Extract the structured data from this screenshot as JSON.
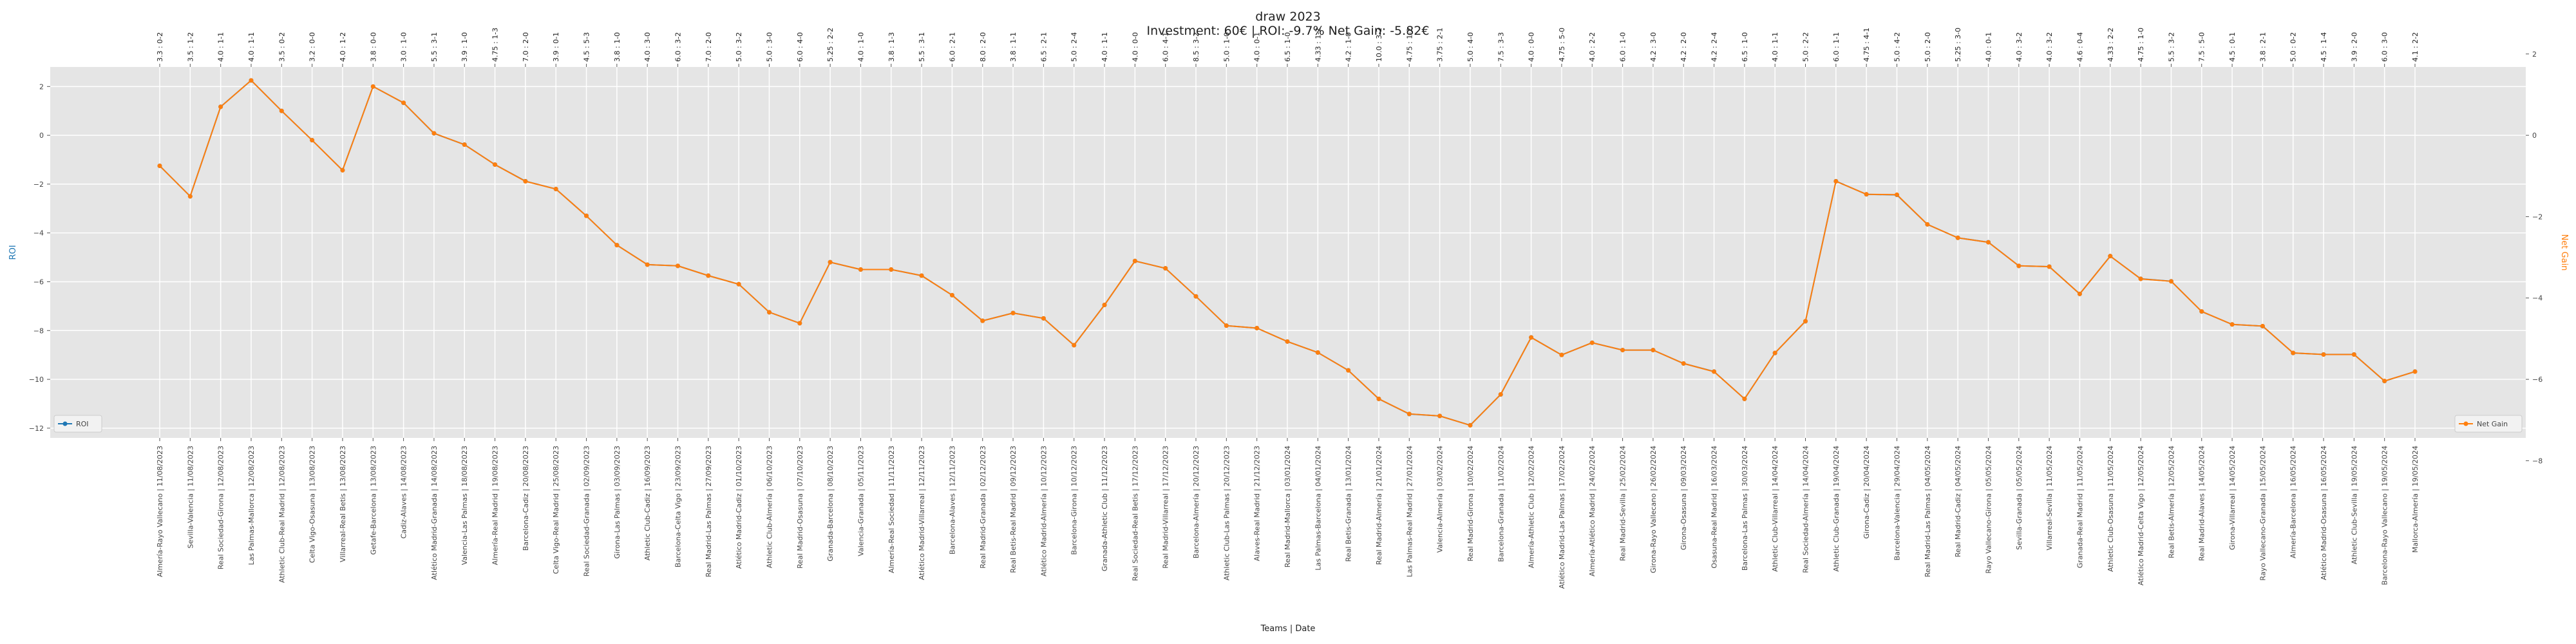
{
  "chart_data": {
    "type": "line",
    "title": "draw 2023",
    "subtitle": "Investment: 60€ | ROI: -9.7% Net Gain: -5.82€",
    "xlabel": "Teams | Date",
    "ylabel_left": "ROI",
    "ylabel_right": "Net Gain",
    "ylim_left": [
      -12.4,
      2.8
    ],
    "ylim_right": [
      -7.44,
      1.68
    ],
    "yticks_left": [
      2,
      0,
      -2,
      -4,
      -6,
      -8,
      -10,
      -12
    ],
    "yticks_right": [
      2,
      0,
      -2,
      -4,
      -6,
      -8
    ],
    "grid": true,
    "legend_left": "bottom-left",
    "legend_right": "bottom-right",
    "colors": {
      "roi": "#1f77b4",
      "net": "#ff7f0e",
      "plot_bg": "#e5e5e5",
      "grid": "#ffffff"
    },
    "categories": [
      "Almería-Rayo Vallecano | 11/08/2023",
      "Sevilla-Valencia | 11/08/2023",
      "Real Sociedad-Girona | 12/08/2023",
      "Las Palmas-Mallorca | 12/08/2023",
      "Athletic Club-Real Madrid | 12/08/2023",
      "Celta Vigo-Osasuna | 13/08/2023",
      "Villarreal-Real Betis | 13/08/2023",
      "Getafe-Barcelona | 13/08/2023",
      "Cadiz-Alaves | 14/08/2023",
      "Atlético Madrid-Granada | 14/08/2023",
      "Valencia-Las Palmas | 18/08/2023",
      "Almería-Real Madrid | 19/08/2023",
      "Barcelona-Cadiz | 20/08/2023",
      "Celta Vigo-Real Madrid | 25/08/2023",
      "Real Sociedad-Granada | 02/09/2023",
      "Girona-Las Palmas | 03/09/2023",
      "Athletic Club-Cadiz | 16/09/2023",
      "Barcelona-Celta Vigo | 23/09/2023",
      "Real Madrid-Las Palmas | 27/09/2023",
      "Atlético Madrid-Cadiz | 01/10/2023",
      "Athletic Club-Almería | 06/10/2023",
      "Real Madrid-Osasuna | 07/10/2023",
      "Granada-Barcelona | 08/10/2023",
      "Valencia-Granada | 05/11/2023",
      "Almería-Real Sociedad | 11/11/2023",
      "Atlético Madrid-Villarreal | 12/11/2023",
      "Barcelona-Alaves | 12/11/2023",
      "Real Madrid-Granada | 02/12/2023",
      "Real Betis-Real Madrid | 09/12/2023",
      "Atlético Madrid-Almería | 10/12/2023",
      "Barcelona-Girona | 10/12/2023",
      "Granada-Athletic Club | 11/12/2023",
      "Real Sociedad-Real Betis | 17/12/2023",
      "Real Madrid-Villarreal | 17/12/2023",
      "Barcelona-Almería | 20/12/2023",
      "Athletic Club-Las Palmas | 20/12/2023",
      "Alaves-Real Madrid | 21/12/2023",
      "Real Madrid-Mallorca | 03/01/2024",
      "Las Palmas-Barcelona | 04/01/2024",
      "Real Betis-Granada | 13/01/2024",
      "Real Madrid-Almería | 21/01/2024",
      "Las Palmas-Real Madrid | 27/01/2024",
      "Valencia-Almería | 03/02/2024",
      "Real Madrid-Girona | 10/02/2024",
      "Barcelona-Granada | 11/02/2024",
      "Almería-Athletic Club | 12/02/2024",
      "Atlético Madrid-Las Palmas | 17/02/2024",
      "Almería-Atlético Madrid | 24/02/2024",
      "Real Madrid-Sevilla | 25/02/2024",
      "Girona-Rayo Vallecano | 26/02/2024",
      "Girona-Osasuna | 09/03/2024",
      "Osasuna-Real Madrid | 16/03/2024",
      "Barcelona-Las Palmas | 30/03/2024",
      "Athletic Club-Villarreal | 14/04/2024",
      "Real Sociedad-Almería | 14/04/2024",
      "Athletic Club-Granada | 19/04/2024",
      "Girona-Cadiz | 20/04/2024",
      "Barcelona-Valencia | 29/04/2024",
      "Real Madrid-Las Palmas | 04/05/2024",
      "Real Madrid-Cadiz | 04/05/2024",
      "Rayo Vallecano-Girona | 05/05/2024",
      "Sevilla-Granada | 05/05/2024",
      "Villarreal-Sevilla | 11/05/2024",
      "Granada-Real Madrid | 11/05/2024",
      "Athletic Club-Osasuna | 11/05/2024",
      "Atlético Madrid-Celta Vigo | 12/05/2024",
      "Real Betis-Almería | 12/05/2024",
      "Real Madrid-Alaves | 14/05/2024",
      "Girona-Villarreal | 14/05/2024",
      "Rayo Vallecano-Granada | 15/05/2024",
      "Almería-Barcelona | 16/05/2024",
      "Atlético Madrid-Osasuna | 16/05/2024",
      "Athletic Club-Sevilla | 19/05/2024",
      "Barcelona-Rayo Vallecano | 19/05/2024",
      "Mallorca-Almería | 19/05/2024"
    ],
    "annotations": [
      "3.3 : 0-2",
      "3.5 : 1-2",
      "4.0 : 1-1",
      "4.0 : 1-1",
      "3.5 : 0-2",
      "3.2 : 0-0",
      "4.0 : 1-2",
      "3.8 : 0-0",
      "3.0 : 1-0",
      "5.5 : 3-1",
      "3.9 : 1-0",
      "4.75 : 1-3",
      "7.0 : 2-0",
      "3.9 : 0-1",
      "4.5 : 5-3",
      "3.8 : 1-0",
      "4.0 : 3-0",
      "6.0 : 3-2",
      "7.0 : 2-0",
      "5.0 : 3-2",
      "5.0 : 3-0",
      "6.0 : 4-0",
      "5.25 : 2-2",
      "4.0 : 1-0",
      "3.8 : 1-3",
      "5.5 : 3-1",
      "6.0 : 2-1",
      "8.0 : 2-0",
      "3.8 : 1-1",
      "6.5 : 2-1",
      "5.0 : 2-4",
      "4.0 : 1-1",
      "4.0 : 0-0",
      "6.0 : 4-1",
      "8.5 : 3-2",
      "5.0 : 1-0",
      "4.0 : 0-1",
      "6.5 : 1-0",
      "4.33 : 1-2",
      "4.2 : 1-0",
      "10.0 : 3-2",
      "4.75 : 1-2",
      "3.75 : 2-1",
      "5.0 : 4-0",
      "7.5 : 3-3",
      "4.0 : 0-0",
      "4.75 : 5-0",
      "4.0 : 2-2",
      "6.0 : 1-0",
      "4.2 : 3-0",
      "4.2 : 2-0",
      "4.2 : 2-4",
      "6.5 : 1-0",
      "4.0 : 1-1",
      "5.0 : 2-2",
      "6.0 : 1-1",
      "4.75 : 4-1",
      "5.0 : 4-2",
      "5.0 : 2-0",
      "5.25 : 3-0",
      "4.0 : 0-1",
      "4.0 : 3-2",
      "4.0 : 3-2",
      "4.6 : 0-4",
      "4.33 : 2-2",
      "4.75 : 1-0",
      "5.5 : 3-2",
      "7.5 : 5-0",
      "4.5 : 0-1",
      "3.8 : 2-1",
      "5.0 : 0-2",
      "4.5 : 1-4",
      "3.9 : 2-0",
      "6.0 : 3-0",
      "4.1 : 2-2"
    ],
    "series": [
      {
        "name": "ROI",
        "axis": "left",
        "color": "#1f77b4",
        "values": [
          -1.25,
          -2.5,
          1.17,
          2.25,
          1.0,
          -0.2,
          -1.43,
          2.0,
          1.33,
          0.08,
          -0.38,
          -1.2,
          -1.88,
          -2.2,
          -3.3,
          -4.5,
          -5.3,
          -5.35,
          -5.75,
          -6.1,
          -7.25,
          -7.7,
          -5.2,
          -5.5,
          -5.5,
          -5.75,
          -6.55,
          -7.6,
          -7.28,
          -7.5,
          -8.6,
          -6.95,
          -5.15,
          -5.45,
          -6.6,
          -7.8,
          -7.9,
          -8.45,
          -8.9,
          -9.63,
          -10.8,
          -11.42,
          -11.5,
          -11.88,
          -10.62,
          -8.28,
          -9.0,
          -8.5,
          -8.8,
          -8.8,
          -9.35,
          -9.68,
          -10.8,
          -8.92,
          -7.62,
          -1.88,
          -2.42,
          -2.44,
          -3.65,
          -4.2,
          -4.38,
          -5.35,
          -5.38,
          -6.5,
          -4.95,
          -5.88,
          -5.98,
          -7.22,
          -7.75,
          -7.82,
          -8.92,
          -8.98,
          -8.98,
          -10.07,
          -9.68
        ]
      },
      {
        "name": "Net Gain",
        "axis": "right",
        "color": "#ff7f0e",
        "values": [
          -0.75,
          -1.5,
          0.7,
          1.35,
          0.6,
          -0.12,
          -0.86,
          1.2,
          0.8,
          0.05,
          -0.23,
          -0.72,
          -1.13,
          -1.32,
          -1.98,
          -2.7,
          -3.18,
          -3.21,
          -3.45,
          -3.66,
          -4.35,
          -4.62,
          -3.12,
          -3.3,
          -3.3,
          -3.45,
          -3.93,
          -4.56,
          -4.37,
          -4.5,
          -5.16,
          -4.17,
          -3.09,
          -3.27,
          -3.96,
          -4.68,
          -4.74,
          -5.07,
          -5.34,
          -5.78,
          -6.48,
          -6.85,
          -6.9,
          -7.13,
          -6.37,
          -4.97,
          -5.4,
          -5.1,
          -5.28,
          -5.28,
          -5.61,
          -5.81,
          -6.48,
          -5.35,
          -4.57,
          -1.13,
          -1.45,
          -1.46,
          -2.19,
          -2.52,
          -2.63,
          -3.21,
          -3.23,
          -3.9,
          -2.97,
          -3.53,
          -3.59,
          -4.33,
          -4.65,
          -4.69,
          -5.35,
          -5.39,
          -5.39,
          -6.04,
          -5.81
        ]
      }
    ]
  }
}
